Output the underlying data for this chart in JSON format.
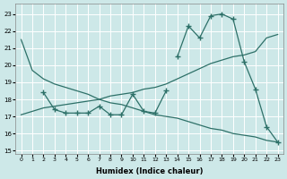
{
  "xlabel": "Humidex (Indice chaleur)",
  "xlim": [
    -0.5,
    23.5
  ],
  "ylim": [
    14.8,
    23.6
  ],
  "yticks": [
    15,
    16,
    17,
    18,
    19,
    20,
    21,
    22,
    23
  ],
  "xticks": [
    0,
    1,
    2,
    3,
    4,
    5,
    6,
    7,
    8,
    9,
    10,
    11,
    12,
    13,
    14,
    15,
    16,
    17,
    18,
    19,
    20,
    21,
    22,
    23
  ],
  "bg_color": "#cde8e8",
  "line_color": "#2d7068",
  "grid_color": "#ffffff",
  "line_smooth_down_x": [
    0,
    1,
    2,
    3,
    4,
    5,
    6,
    7,
    8,
    9,
    10,
    11,
    12,
    13,
    14,
    15,
    16,
    17,
    18,
    19,
    20,
    21,
    22,
    23
  ],
  "line_smooth_down_y": [
    21.5,
    19.7,
    19.2,
    18.9,
    18.7,
    18.5,
    18.3,
    18.0,
    17.8,
    17.7,
    17.5,
    17.3,
    17.1,
    17.0,
    16.9,
    16.7,
    16.5,
    16.3,
    16.2,
    16.0,
    15.9,
    15.8,
    15.6,
    15.5
  ],
  "line_smooth_up_x": [
    0,
    1,
    2,
    3,
    4,
    5,
    6,
    7,
    8,
    9,
    10,
    11,
    12,
    13,
    14,
    15,
    16,
    17,
    18,
    19,
    20,
    21,
    22,
    23
  ],
  "line_smooth_up_y": [
    17.1,
    17.3,
    17.5,
    17.6,
    17.7,
    17.8,
    17.9,
    18.0,
    18.2,
    18.3,
    18.4,
    18.6,
    18.7,
    18.9,
    19.2,
    19.5,
    19.8,
    20.1,
    20.3,
    20.5,
    20.6,
    20.8,
    21.6,
    21.8
  ],
  "line_flat_x": [
    2,
    3,
    4,
    5,
    6,
    7,
    8,
    9,
    10,
    11,
    12,
    13
  ],
  "line_flat_y": [
    18.4,
    17.4,
    17.2,
    17.2,
    17.2,
    17.6,
    17.1,
    17.1,
    18.3,
    17.3,
    17.2,
    18.5
  ],
  "line_jagged_x": [
    14,
    15,
    16,
    17,
    18,
    19,
    20,
    21,
    22,
    23
  ],
  "line_jagged_y": [
    20.5,
    22.3,
    21.6,
    22.9,
    23.0,
    22.7,
    20.2,
    18.6,
    16.4,
    15.5
  ]
}
